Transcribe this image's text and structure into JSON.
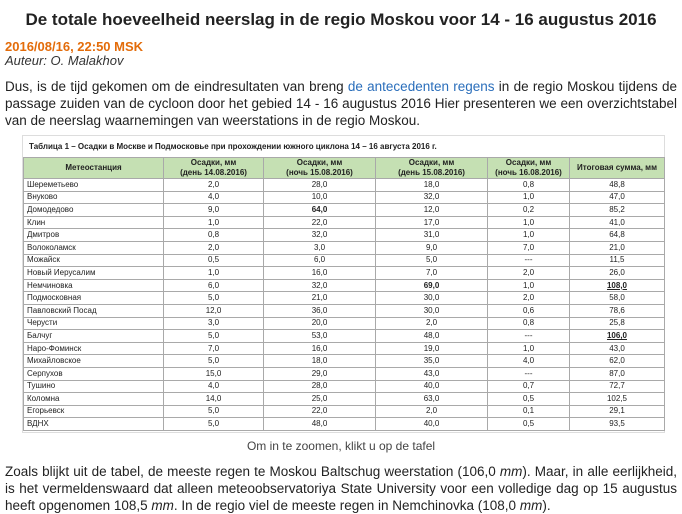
{
  "header": {
    "title": "De totale hoeveelheid neerslag in de regio Moskou voor 14 - 16 augustus 2016",
    "date": "2016/08/16, 22:50 MSK",
    "author": "Auteur: O. Malakhov"
  },
  "intro": {
    "before": "Dus, is de tijd gekomen om de eindresultaten van breng ",
    "link": "de antecedenten regens",
    "after": " in de regio Moskou tijdens de passage zuiden van de cycloon door het gebied 14 - 16 augustus 2016 Hier presenteren we een overzichtstabel van de neerslag waarnemingen van weerstations in de regio Moskou."
  },
  "table": {
    "caption": "Таблица 1 – Осадки в Москве и Подмосковье при прохождении южного циклона 14 – 16 августа 2016 г.",
    "headers": [
      [
        "Метеостанция"
      ],
      [
        "Осадки, мм",
        "(день 14.08.2016)"
      ],
      [
        "Осадки, мм",
        "(ночь 15.08.2016)"
      ],
      [
        "Осадки, мм",
        "(день 15.08.2016)"
      ],
      [
        "Осадки, мм",
        "(ночь 16.08.2016)"
      ],
      [
        "Итоговая сумма, мм"
      ]
    ],
    "rows": [
      [
        "Шереметьево",
        "2,0",
        "28,0",
        "18,0",
        "0,8",
        "48,8"
      ],
      [
        "Внуково",
        "4,0",
        "10,0",
        "32,0",
        "1,0",
        "47,0"
      ],
      [
        "Домодедово",
        "9,0",
        "64,0",
        "12,0",
        "0,2",
        "85,2"
      ],
      [
        "Клин",
        "1,0",
        "22,0",
        "17,0",
        "1,0",
        "41,0"
      ],
      [
        "Дмитров",
        "0,8",
        "32,0",
        "31,0",
        "1,0",
        "64,8"
      ],
      [
        "Волоколамск",
        "2,0",
        "3,0",
        "9,0",
        "7,0",
        "21,0"
      ],
      [
        "Можайск",
        "0,5",
        "6,0",
        "5,0",
        "---",
        "11,5"
      ],
      [
        "Новый Иерусалим",
        "1,0",
        "16,0",
        "7,0",
        "2,0",
        "26,0"
      ],
      [
        "Немчиновка",
        "6,0",
        "32,0",
        "69,0",
        "1,0",
        "108,0"
      ],
      [
        "Подмосковная",
        "5,0",
        "21,0",
        "30,0",
        "2,0",
        "58,0"
      ],
      [
        "Павловский Посад",
        "12,0",
        "36,0",
        "30,0",
        "0,6",
        "78,6"
      ],
      [
        "Черусти",
        "3,0",
        "20,0",
        "2,0",
        "0,8",
        "25,8"
      ],
      [
        "Балчуг",
        "5,0",
        "53,0",
        "48,0",
        "---",
        "106,0"
      ],
      [
        "Наро-Фоминск",
        "7,0",
        "16,0",
        "19,0",
        "1,0",
        "43,0"
      ],
      [
        "Михайловское",
        "5,0",
        "18,0",
        "35,0",
        "4,0",
        "62,0"
      ],
      [
        "Серпухов",
        "15,0",
        "29,0",
        "43,0",
        "---",
        "87,0"
      ],
      [
        "Тушино",
        "4,0",
        "28,0",
        "40,0",
        "0,7",
        "72,7"
      ],
      [
        "Коломна",
        "14,0",
        "25,0",
        "63,0",
        "0,5",
        "102,5"
      ],
      [
        "Егорьевск",
        "5,0",
        "22,0",
        "2,0",
        "0,1",
        "29,1"
      ],
      [
        "ВДНХ",
        "5,0",
        "48,0",
        "40,0",
        "0,5",
        "93,5"
      ]
    ],
    "bold_cells": [
      [
        2,
        2
      ],
      [
        8,
        3
      ],
      [
        8,
        5
      ],
      [
        12,
        5
      ]
    ],
    "underline_cells": [
      [
        8,
        5
      ],
      [
        12,
        5
      ]
    ],
    "header_color": "#c5e0b3"
  },
  "zoom_note": "Om in te zoomen, klikt u op de tafel",
  "conclusion": [
    "Zoals blijkt uit de tabel, de meeste regen te Moskou Baltschug weerstation (106,0 ",
    "mm",
    "). Maar, in alle eerlijkheid, is het vermeldenswaard dat alleen meteoobservatoriya State University voor een volledige dag op 15 augustus heeft opgenomen 108,5 ",
    "mm",
    ". In de regio viel de meeste regen in Nemchinovka (108,0 ",
    "mm",
    ")."
  ]
}
